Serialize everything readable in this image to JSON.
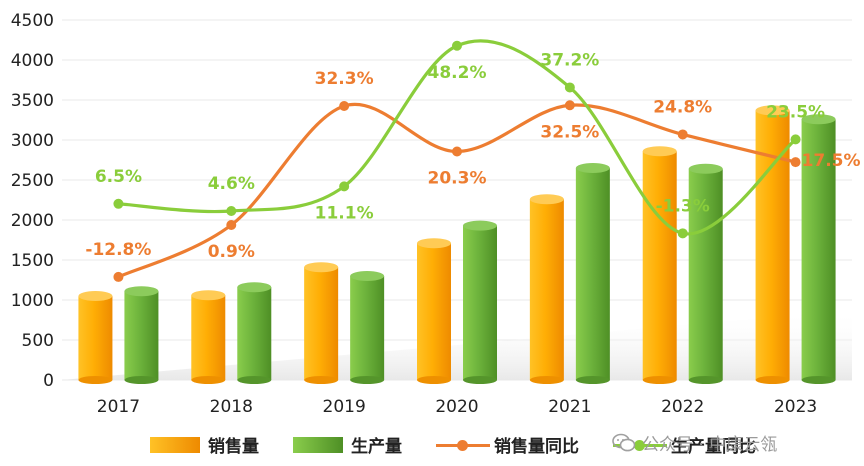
{
  "chart_data": {
    "type": "bar",
    "categories": [
      "2017",
      "2018",
      "2019",
      "2020",
      "2021",
      "2022",
      "2023"
    ],
    "ylim": [
      0,
      4500
    ],
    "yticks": [
      "0",
      "500",
      "1000",
      "1500",
      "2000",
      "2500",
      "3000",
      "3500",
      "4000",
      "4500"
    ],
    "grid": true,
    "legend_position": "bottom",
    "series": [
      {
        "name": "销售量",
        "kind": "bar",
        "color": "#FFA500",
        "values": [
          1050,
          1060,
          1410,
          1710,
          2260,
          2860,
          3370
        ]
      },
      {
        "name": "生产量",
        "kind": "bar",
        "color": "#6AAF3A",
        "values": [
          1110,
          1160,
          1300,
          1930,
          2650,
          2640,
          3260
        ]
      },
      {
        "name": "销售量同比",
        "kind": "line",
        "color": "#ED7D31",
        "labels": [
          "-12.8%",
          "0.9%",
          "32.3%",
          "20.3%",
          "32.5%",
          "24.8%",
          "17.5%"
        ],
        "values": [
          -12.8,
          0.9,
          32.3,
          20.3,
          32.5,
          24.8,
          17.5
        ]
      },
      {
        "name": "生产量同比",
        "kind": "line",
        "color": "#8ACD3B",
        "labels": [
          "6.5%",
          "4.6%",
          "11.1%",
          "48.2%",
          "37.2%",
          "-1.3%",
          "23.5%"
        ],
        "values": [
          6.5,
          4.6,
          11.1,
          48.2,
          37.2,
          -1.3,
          23.5
        ]
      }
    ]
  },
  "watermark": {
    "text": "公众号 · 中康云瓴",
    "icon": "wechat-icon"
  }
}
